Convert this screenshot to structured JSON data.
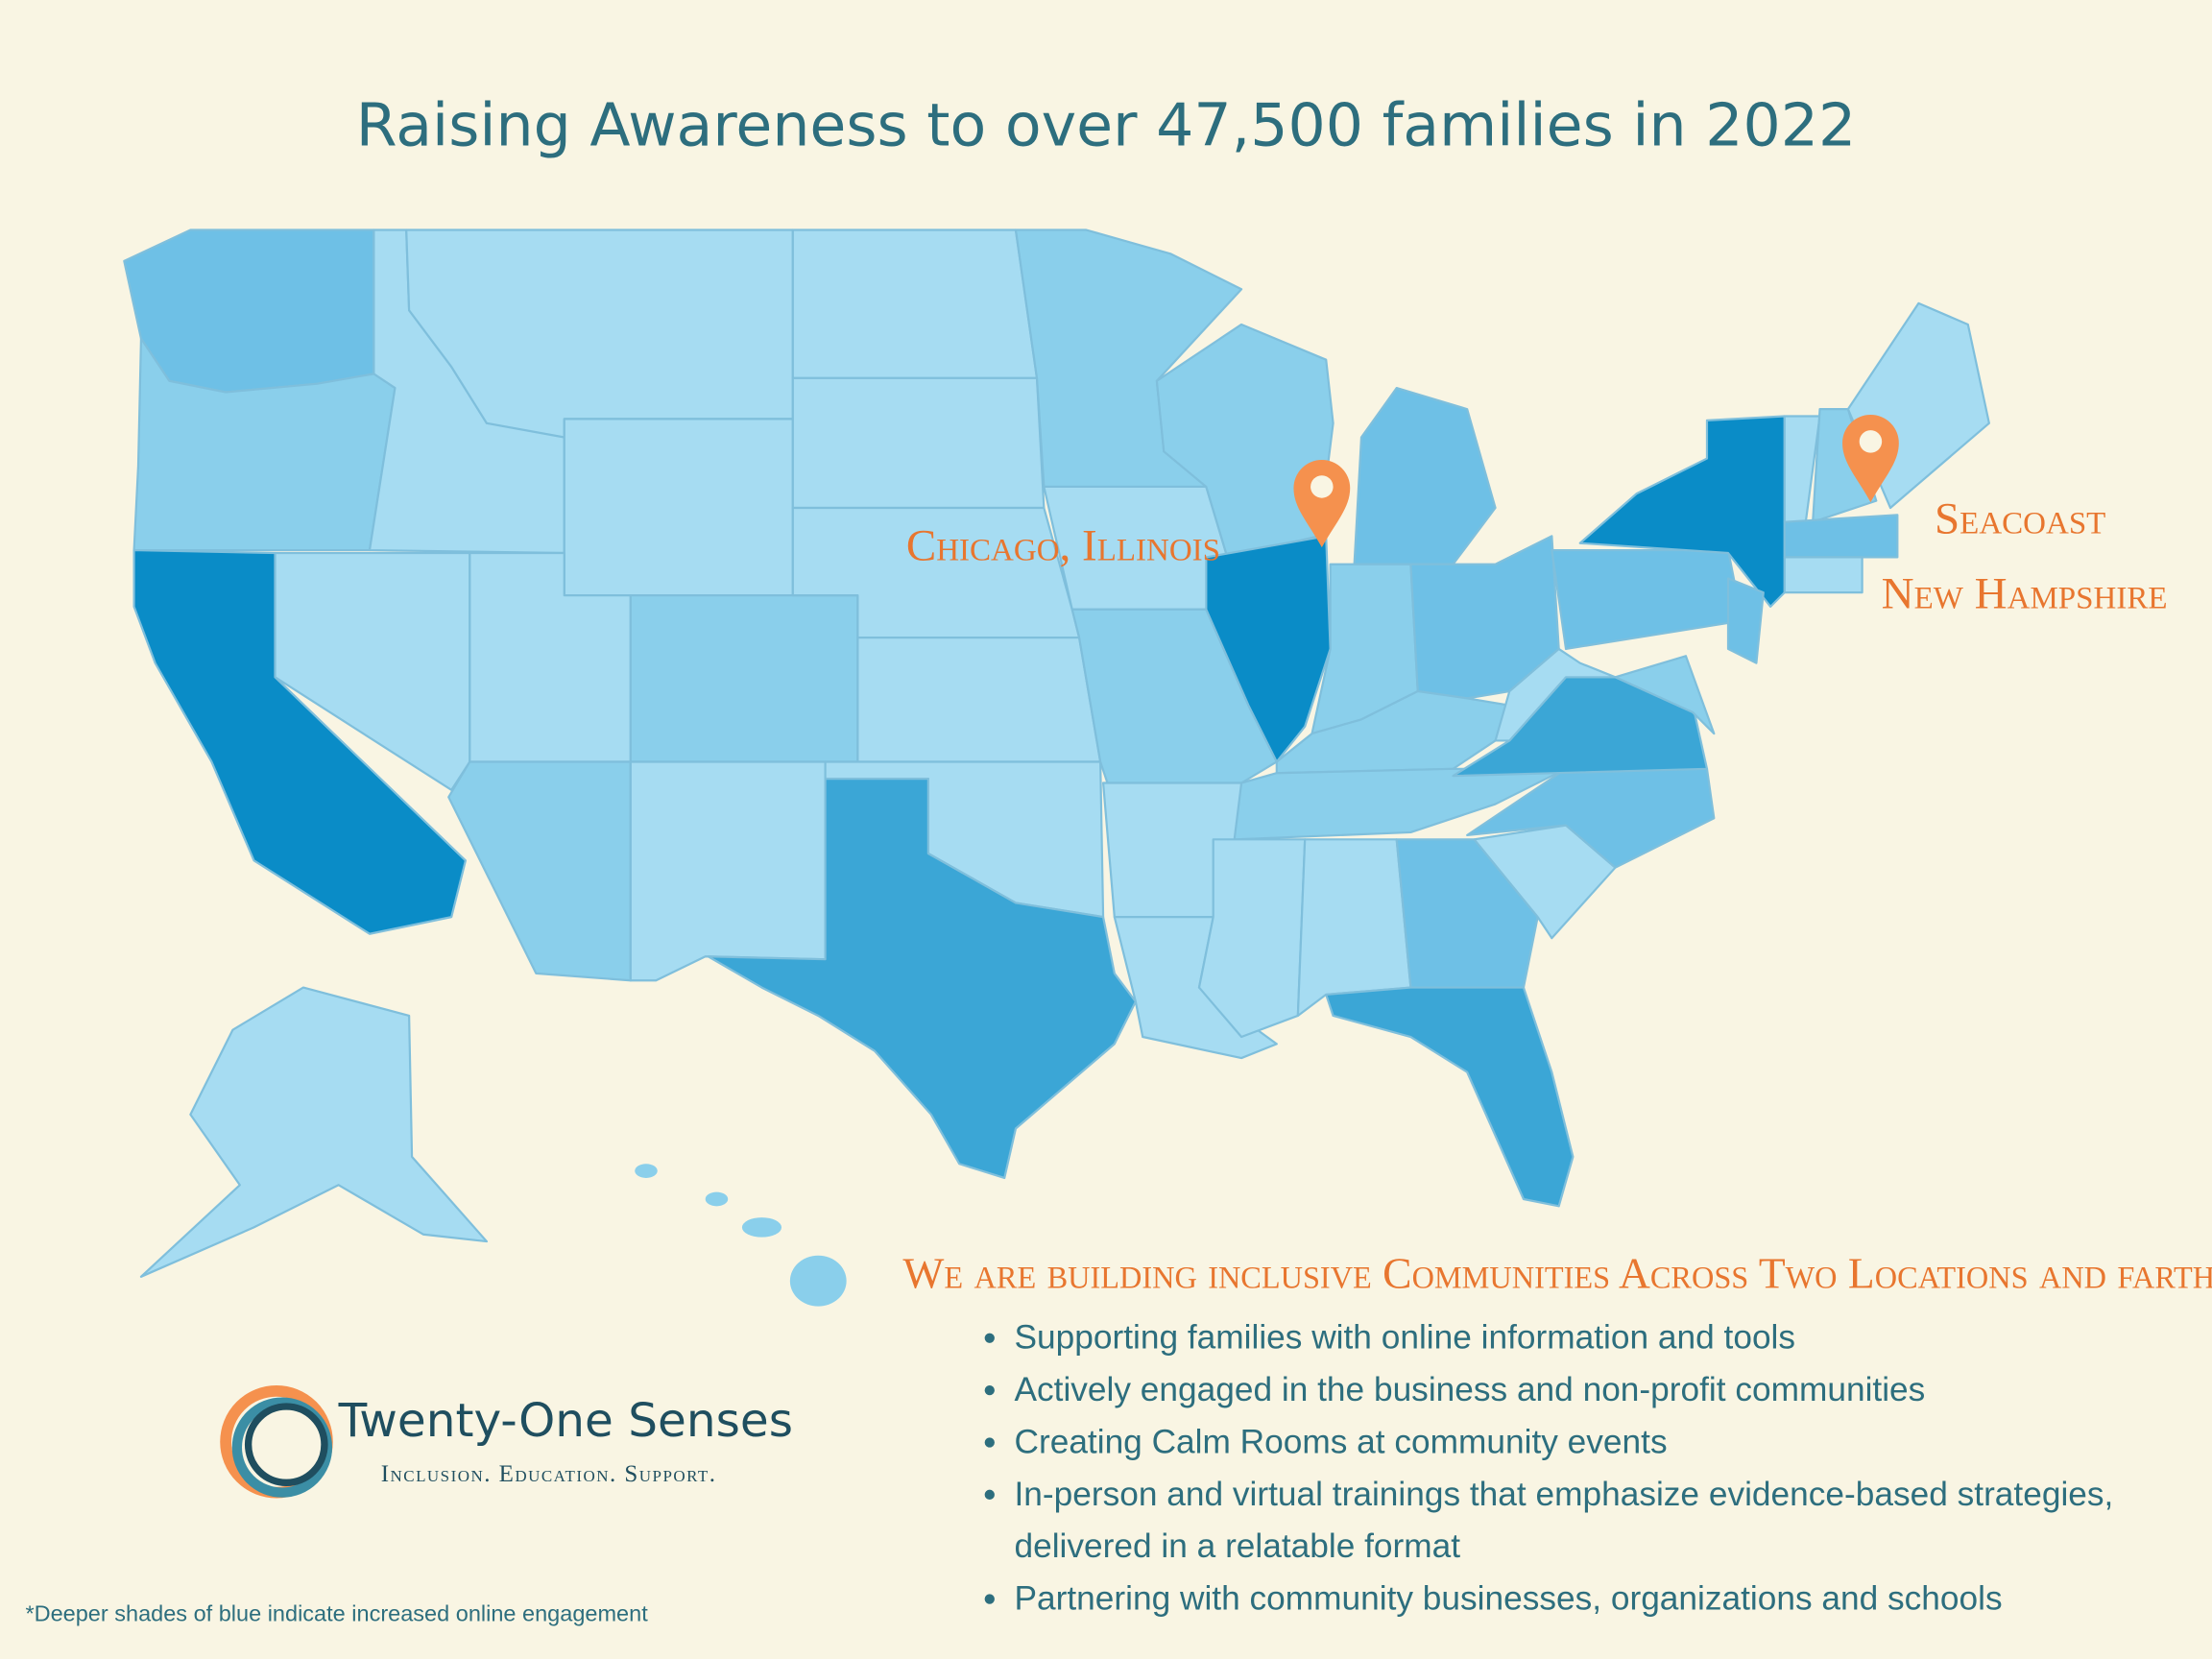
{
  "title": "Raising Awareness to over 47,500 families in 2022",
  "map": {
    "locations": [
      {
        "label": [
          "Chicago, Illinois"
        ]
      },
      {
        "label": [
          "Seacoast",
          "New Hampshire"
        ]
      }
    ]
  },
  "section": {
    "heading": "We are building inclusive Communities Across Two Locations and farther*",
    "bullets": [
      "Supporting families with online information and tools",
      "Actively engaged in the business and non-profit communities",
      "Creating Calm Rooms at community events",
      "In-person and virtual trainings that emphasize evidence-based strategies, delivered in a relatable format",
      "Partnering with community businesses, organizations and schools"
    ]
  },
  "logo": {
    "name": "Twenty-One Senses",
    "tagline": "Inclusion. Education. Support."
  },
  "footnote": "*Deeper shades of blue indicate increased online engagement"
}
